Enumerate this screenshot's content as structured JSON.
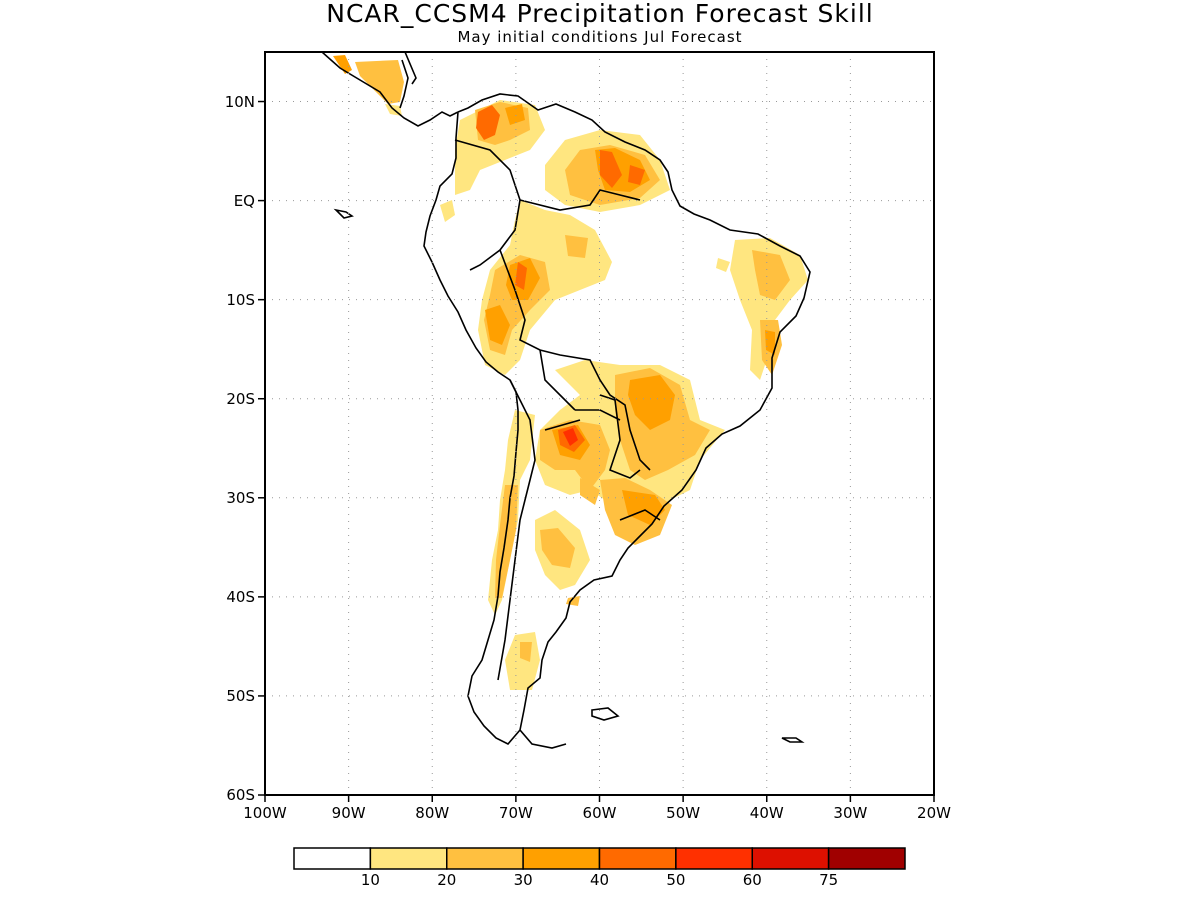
{
  "title": "NCAR_CCSM4 Precipitation Forecast Skill",
  "subtitle": "May initial conditions   Jul Forecast",
  "axes": {
    "lat_labels": [
      "10N",
      "EQ",
      "10S",
      "20S",
      "30S",
      "40S",
      "50S",
      "60S"
    ],
    "lat_values": [
      10,
      0,
      -10,
      -20,
      -30,
      -40,
      -50,
      -60
    ],
    "lon_labels": [
      "100W",
      "90W",
      "80W",
      "70W",
      "60W",
      "50W",
      "40W",
      "30W",
      "20W"
    ],
    "lon_values": [
      -100,
      -90,
      -80,
      -70,
      -60,
      -50,
      -40,
      -30,
      -20
    ],
    "lon_range": [
      -100,
      -20
    ],
    "lat_range": [
      -60,
      15
    ],
    "grid": "dotted"
  },
  "colorbar": {
    "labels": [
      "10",
      "20",
      "30",
      "40",
      "50",
      "60",
      "75"
    ],
    "colors": [
      "#ffffff",
      "#ffe680",
      "#ffc040",
      "#ffa000",
      "#ff6a00",
      "#ff3000",
      "#dd1000",
      "#a00000"
    ]
  },
  "colors": {
    "frame": "#000000",
    "grid": "#999999",
    "coast": "#000000"
  }
}
